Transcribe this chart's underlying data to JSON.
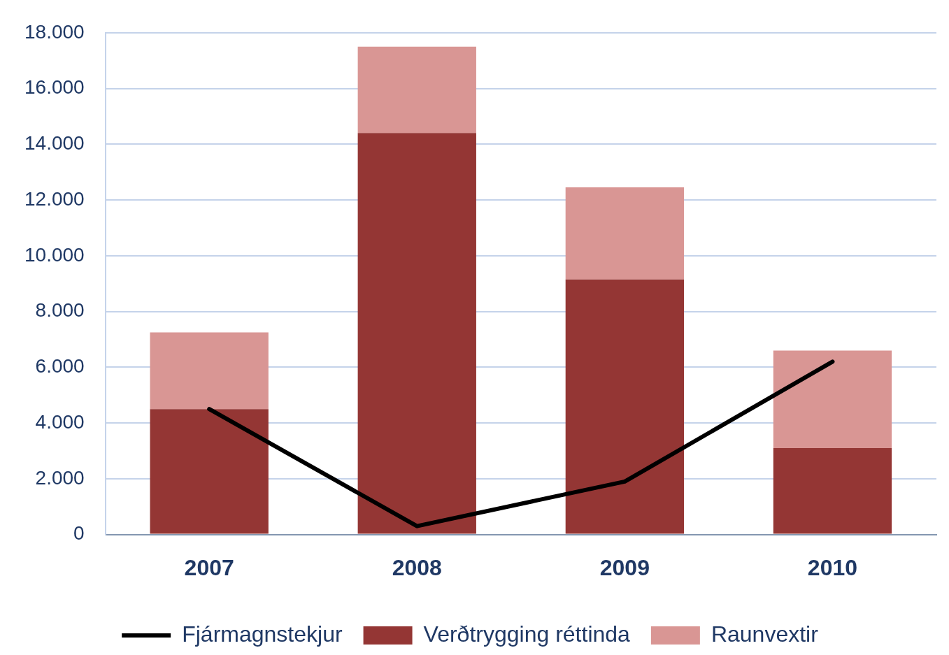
{
  "chart_data": {
    "type": "bar",
    "stacked": true,
    "categories": [
      "2007",
      "2008",
      "2009",
      "2010"
    ],
    "series": [
      {
        "name": "Verðtrygging réttinda",
        "color": "#943634",
        "values": [
          4500,
          14400,
          9150,
          3100
        ]
      },
      {
        "name": "Raunvextir",
        "color": "#d99694",
        "values": [
          2750,
          3100,
          3300,
          3500
        ]
      },
      {
        "name": "Fjármagnstekjur",
        "type": "line",
        "color": "#000000",
        "values": [
          4500,
          300,
          1900,
          6200
        ]
      }
    ],
    "ylim": [
      0,
      18000
    ],
    "yticks": [
      {
        "value": 0,
        "label": "0"
      },
      {
        "value": 2000,
        "label": "2.000"
      },
      {
        "value": 4000,
        "label": "4.000"
      },
      {
        "value": 6000,
        "label": "6.000"
      },
      {
        "value": 8000,
        "label": "8.000"
      },
      {
        "value": 10000,
        "label": "10.000"
      },
      {
        "value": 12000,
        "label": "12.000"
      },
      {
        "value": 14000,
        "label": "14.000"
      },
      {
        "value": 16000,
        "label": "16.000"
      },
      {
        "value": 18000,
        "label": "18.000"
      }
    ],
    "grid": "y",
    "legend": "bottom",
    "marker": "none",
    "line_style": "solid"
  }
}
